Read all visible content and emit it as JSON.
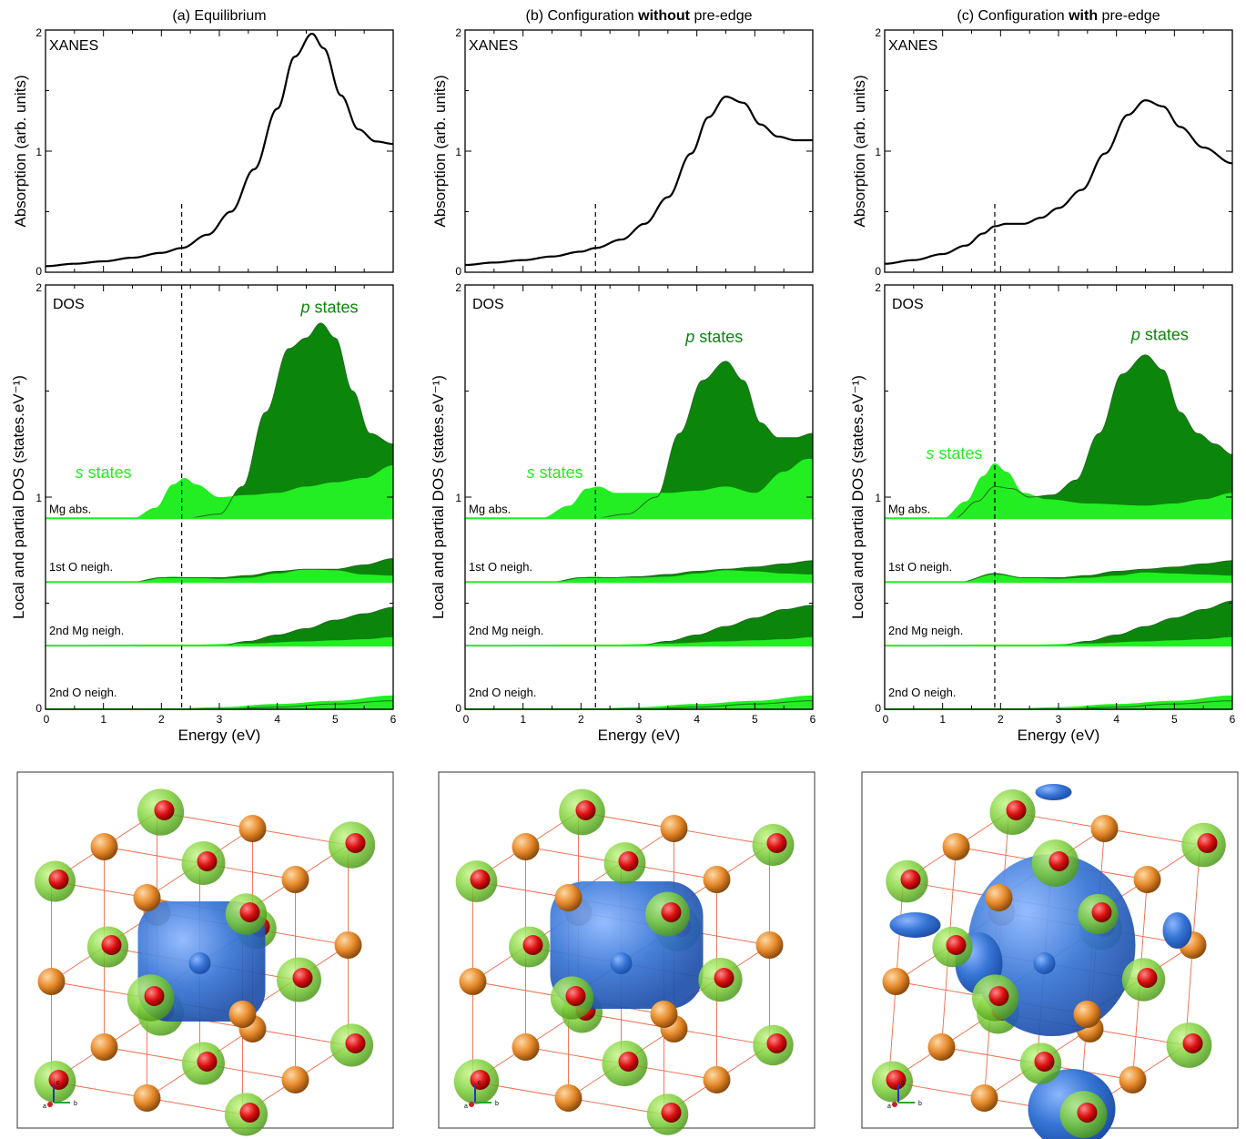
{
  "figure": {
    "colors": {
      "axis": "#000000",
      "curve": "#000000",
      "s_fill": "#22ee22",
      "p_fill": "#0b860b",
      "iso_green": "#7fd13b",
      "iso_blue": "#3674d4",
      "atom_o": "#dd1111",
      "atom_mg": "#e6892a",
      "bond": "#ee6a4a"
    }
  },
  "chart_data": [
    {
      "panel": "a",
      "type": "line",
      "title": "(a) Equilibrium",
      "title_parts": [
        {
          "text": "(a) Equilibrium",
          "bold": false
        }
      ],
      "xanes": {
        "label": "XANES",
        "ylabel": "Absorption (arb. units)",
        "xlim": [
          0,
          6
        ],
        "ylim": [
          0,
          2
        ],
        "yticks": [
          "0",
          "1",
          "2"
        ],
        "x": [
          0,
          0.5,
          1,
          1.5,
          2,
          2.35,
          2.8,
          3.2,
          3.6,
          4.0,
          4.3,
          4.6,
          4.8,
          5.1,
          5.4,
          5.7,
          6.0
        ],
        "y": [
          0.05,
          0.07,
          0.09,
          0.12,
          0.16,
          0.2,
          0.31,
          0.5,
          0.85,
          1.35,
          1.78,
          1.97,
          1.85,
          1.46,
          1.18,
          1.08,
          1.06
        ]
      },
      "dos": {
        "label": "DOS",
        "ylabel": "Local and partial DOS (states.eV⁻¹)",
        "xlabel": "Energy (eV)",
        "xlim": [
          0,
          6
        ],
        "ylim": [
          0,
          2
        ],
        "xticks": [
          "0",
          "1",
          "2",
          "3",
          "4",
          "5",
          "6"
        ],
        "yticks": [
          "0",
          "1",
          "2"
        ],
        "dashed_x": 2.35,
        "s_label": "s states",
        "p_label": "p states",
        "s_label_at": [
          1.0,
          1.09
        ],
        "p_label_at": [
          4.9,
          1.87
        ],
        "groups": [
          {
            "label": "Mg abs.",
            "baseline": 0.9,
            "s": {
              "x": [
                0,
                1.5,
                1.9,
                2.2,
                2.4,
                2.6,
                3.0,
                3.5,
                4.0,
                4.5,
                5.0,
                5.5,
                6.0
              ],
              "y": [
                0,
                0,
                0.05,
                0.16,
                0.19,
                0.16,
                0.1,
                0.11,
                0.12,
                0.15,
                0.17,
                0.19,
                0.25
              ]
            },
            "p": {
              "x": [
                0,
                2.4,
                3.0,
                3.4,
                3.8,
                4.2,
                4.5,
                4.75,
                5.0,
                5.3,
                5.6,
                6.0
              ],
              "y": [
                0,
                0,
                0.02,
                0.15,
                0.5,
                0.8,
                0.85,
                0.92,
                0.85,
                0.6,
                0.4,
                0.35
              ]
            }
          },
          {
            "label": "1st O  neigh.",
            "baseline": 0.6,
            "s": {
              "x": [
                0,
                1.5,
                2.2,
                2.6,
                3.0,
                3.5,
                4.0,
                4.5,
                5.0,
                5.5,
                6.0
              ],
              "y": [
                0,
                0,
                0.025,
                0.02,
                0.015,
                0.02,
                0.04,
                0.06,
                0.055,
                0.035,
                0.03
              ]
            },
            "p": {
              "x": [
                0,
                1.5,
                2.0,
                2.5,
                3.0,
                3.5,
                4.0,
                4.5,
                5.0,
                5.5,
                6.0
              ],
              "y": [
                0,
                0,
                0.02,
                0.02,
                0.02,
                0.03,
                0.05,
                0.06,
                0.06,
                0.08,
                0.11
              ]
            }
          },
          {
            "label": "2nd Mg neigh.",
            "baseline": 0.3,
            "s": {
              "x": [
                0,
                1.5,
                2.5,
                3.5,
                4.5,
                5.0,
                5.5,
                6.0
              ],
              "y": [
                0,
                0.005,
                0.005,
                0.01,
                0.02,
                0.025,
                0.03,
                0.04
              ]
            },
            "p": {
              "x": [
                0,
                3.0,
                3.5,
                4.0,
                4.5,
                5.0,
                5.5,
                6.0
              ],
              "y": [
                0,
                0,
                0.02,
                0.05,
                0.08,
                0.12,
                0.15,
                0.18
              ]
            }
          },
          {
            "label": "2nd O neigh.",
            "baseline": 0.0,
            "s": {
              "x": [
                0,
                2.0,
                3.0,
                4.0,
                5.0,
                6.0
              ],
              "y": [
                0,
                0,
                0.01,
                0.025,
                0.04,
                0.065
              ]
            },
            "p": {
              "x": [
                0,
                3.0,
                4.0,
                5.0,
                6.0
              ],
              "y": [
                0,
                0,
                0.01,
                0.025,
                0.04
              ]
            }
          }
        ]
      }
    },
    {
      "panel": "b",
      "type": "line",
      "title": "(b) Configuration without pre-edge",
      "title_parts": [
        {
          "text": "(b) Configuration ",
          "bold": false
        },
        {
          "text": "without",
          "bold": true
        },
        {
          "text": " pre-edge",
          "bold": false
        }
      ],
      "xanes": {
        "label": "XANES",
        "ylabel": "Absorption (arb. units)",
        "xlim": [
          0,
          6
        ],
        "ylim": [
          0,
          2
        ],
        "yticks": [
          "0",
          "1",
          "2"
        ],
        "x": [
          0,
          0.5,
          1,
          1.5,
          2,
          2.25,
          2.7,
          3.1,
          3.5,
          3.9,
          4.2,
          4.5,
          4.8,
          5.1,
          5.4,
          5.7,
          6.0
        ],
        "y": [
          0.06,
          0.08,
          0.1,
          0.13,
          0.17,
          0.2,
          0.27,
          0.4,
          0.62,
          0.98,
          1.28,
          1.45,
          1.4,
          1.22,
          1.12,
          1.09,
          1.09
        ]
      },
      "dos": {
        "label": "DOS",
        "ylabel": "Local and partial DOS (states.eV⁻¹)",
        "xlabel": "Energy (eV)",
        "xlim": [
          0,
          6
        ],
        "ylim": [
          0,
          2
        ],
        "xticks": [
          "0",
          "1",
          "2",
          "3",
          "4",
          "5",
          "6"
        ],
        "yticks": [
          "0",
          "1",
          "2"
        ],
        "dashed_x": 2.25,
        "s_label": "s states",
        "p_label": "p states",
        "s_label_at": [
          1.55,
          1.09
        ],
        "p_label_at": [
          4.3,
          1.73
        ],
        "groups": [
          {
            "label": "Mg abs.",
            "baseline": 0.9,
            "s": {
              "x": [
                0,
                1.3,
                1.8,
                2.1,
                2.3,
                2.6,
                3.0,
                3.5,
                4.0,
                4.5,
                5.0,
                5.5,
                5.9,
                6.0
              ],
              "y": [
                0,
                0,
                0.06,
                0.14,
                0.15,
                0.12,
                0.12,
                0.12,
                0.13,
                0.15,
                0.12,
                0.22,
                0.28,
                0.28
              ]
            },
            "p": {
              "x": [
                0,
                2.2,
                2.8,
                3.3,
                3.7,
                4.1,
                4.5,
                4.8,
                5.1,
                5.4,
                5.7,
                6.0
              ],
              "y": [
                0,
                0,
                0.02,
                0.1,
                0.4,
                0.65,
                0.74,
                0.65,
                0.45,
                0.38,
                0.38,
                0.4
              ]
            }
          },
          {
            "label": "1st O  neigh.",
            "baseline": 0.6,
            "s": {
              "x": [
                0,
                1.5,
                2.2,
                2.6,
                3.0,
                3.5,
                4.0,
                4.5,
                5.0,
                5.5,
                6.0
              ],
              "y": [
                0,
                0,
                0.025,
                0.02,
                0.02,
                0.025,
                0.04,
                0.055,
                0.05,
                0.04,
                0.035
              ]
            },
            "p": {
              "x": [
                0,
                1.5,
                2.0,
                2.5,
                3.0,
                3.5,
                4.0,
                4.5,
                5.0,
                5.5,
                6.0
              ],
              "y": [
                0,
                0,
                0.02,
                0.02,
                0.025,
                0.035,
                0.05,
                0.06,
                0.07,
                0.085,
                0.1
              ]
            }
          },
          {
            "label": "2nd Mg neigh.",
            "baseline": 0.3,
            "s": {
              "x": [
                0,
                1.5,
                2.5,
                3.5,
                4.5,
                5.0,
                5.5,
                6.0
              ],
              "y": [
                0,
                0.005,
                0.005,
                0.01,
                0.02,
                0.025,
                0.03,
                0.04
              ]
            },
            "p": {
              "x": [
                0,
                3.0,
                3.5,
                4.0,
                4.5,
                5.0,
                5.5,
                6.0
              ],
              "y": [
                0,
                0,
                0.02,
                0.05,
                0.09,
                0.13,
                0.17,
                0.19
              ]
            }
          },
          {
            "label": "2nd O neigh.",
            "baseline": 0.0,
            "s": {
              "x": [
                0,
                2.0,
                3.0,
                4.0,
                5.0,
                6.0
              ],
              "y": [
                0,
                0,
                0.01,
                0.025,
                0.04,
                0.065
              ]
            },
            "p": {
              "x": [
                0,
                3.0,
                4.0,
                5.0,
                6.0
              ],
              "y": [
                0,
                0,
                0.01,
                0.025,
                0.04
              ]
            }
          }
        ]
      }
    },
    {
      "panel": "c",
      "type": "line",
      "title": "(c) Configuration with pre-edge",
      "title_parts": [
        {
          "text": "(c) Configuration ",
          "bold": false
        },
        {
          "text": "with",
          "bold": true
        },
        {
          "text": " pre-edge",
          "bold": false
        }
      ],
      "xanes": {
        "label": "XANES",
        "ylabel": "Absorption (arb. units)",
        "xlim": [
          0,
          6
        ],
        "ylim": [
          0,
          2
        ],
        "yticks": [
          "0",
          "1",
          "2"
        ],
        "x": [
          0,
          0.5,
          1,
          1.4,
          1.7,
          1.9,
          2.1,
          2.4,
          2.7,
          3.0,
          3.4,
          3.8,
          4.2,
          4.5,
          4.8,
          5.1,
          5.5,
          6.0
        ],
        "y": [
          0.07,
          0.1,
          0.15,
          0.22,
          0.32,
          0.38,
          0.4,
          0.4,
          0.45,
          0.53,
          0.68,
          0.98,
          1.3,
          1.42,
          1.37,
          1.2,
          1.03,
          0.9
        ]
      },
      "dos": {
        "label": "DOS",
        "ylabel": "Local and partial DOS (states.eV⁻¹)",
        "xlabel": "Energy (eV)",
        "xlim": [
          0,
          6
        ],
        "ylim": [
          0,
          2
        ],
        "xticks": [
          "0",
          "1",
          "2",
          "3",
          "4",
          "5",
          "6"
        ],
        "yticks": [
          "0",
          "1",
          "2"
        ],
        "dashed_x": 1.9,
        "s_label": "s states",
        "p_label": "p states",
        "s_label_at": [
          1.2,
          1.18
        ],
        "p_label_at": [
          4.75,
          1.74
        ],
        "groups": [
          {
            "label": "Mg abs.",
            "baseline": 0.9,
            "s": {
              "x": [
                0,
                1.0,
                1.4,
                1.7,
                1.9,
                2.1,
                2.4,
                2.8,
                3.5,
                4.5,
                5.0,
                5.5,
                6.0
              ],
              "y": [
                0,
                0,
                0.08,
                0.2,
                0.26,
                0.22,
                0.12,
                0.09,
                0.07,
                0.06,
                0.07,
                0.09,
                0.12
              ]
            },
            "p": {
              "x": [
                0,
                1.2,
                1.6,
                1.9,
                2.2,
                2.5,
                2.9,
                3.3,
                3.7,
                4.1,
                4.5,
                4.8,
                5.1,
                5.4,
                5.7,
                6.0
              ],
              "y": [
                0,
                0,
                0.08,
                0.15,
                0.14,
                0.1,
                0.11,
                0.18,
                0.4,
                0.68,
                0.77,
                0.7,
                0.5,
                0.4,
                0.35,
                0.3
              ]
            }
          },
          {
            "label": "1st O  neigh.",
            "baseline": 0.6,
            "s": {
              "x": [
                0,
                1.3,
                1.9,
                2.4,
                3.0,
                3.5,
                4.0,
                4.5,
                5.0,
                5.5,
                6.0
              ],
              "y": [
                0,
                0,
                0.035,
                0.02,
                0.015,
                0.02,
                0.03,
                0.045,
                0.04,
                0.035,
                0.03
              ]
            },
            "p": {
              "x": [
                0,
                1.3,
                1.9,
                2.4,
                3.0,
                3.5,
                4.0,
                4.5,
                5.0,
                5.5,
                6.0
              ],
              "y": [
                0,
                0,
                0.04,
                0.02,
                0.02,
                0.03,
                0.05,
                0.06,
                0.07,
                0.085,
                0.1
              ]
            }
          },
          {
            "label": "2nd Mg neigh.",
            "baseline": 0.3,
            "s": {
              "x": [
                0,
                1.5,
                2.5,
                3.5,
                4.5,
                5.0,
                5.5,
                6.0
              ],
              "y": [
                0,
                0.005,
                0.005,
                0.01,
                0.02,
                0.025,
                0.03,
                0.04
              ]
            },
            "p": {
              "x": [
                0,
                3.0,
                3.5,
                4.0,
                4.5,
                5.0,
                5.5,
                6.0
              ],
              "y": [
                0,
                0,
                0.02,
                0.05,
                0.09,
                0.13,
                0.17,
                0.21
              ]
            }
          },
          {
            "label": "2nd O neigh.",
            "baseline": 0.0,
            "s": {
              "x": [
                0,
                2.0,
                3.0,
                4.0,
                5.0,
                6.0
              ],
              "y": [
                0,
                0,
                0.01,
                0.025,
                0.04,
                0.065
              ]
            },
            "p": {
              "x": [
                0,
                3.0,
                4.0,
                5.0,
                6.0
              ],
              "y": [
                0,
                0,
                0.01,
                0.025,
                0.04
              ]
            }
          }
        ]
      }
    }
  ],
  "structures": [
    {
      "panel": "a",
      "axes_labels": [
        "a",
        "b",
        "c"
      ]
    },
    {
      "panel": "b",
      "axes_labels": [
        "a",
        "b",
        "c"
      ]
    },
    {
      "panel": "c",
      "axes_labels": [
        "a",
        "b",
        "c"
      ]
    }
  ]
}
